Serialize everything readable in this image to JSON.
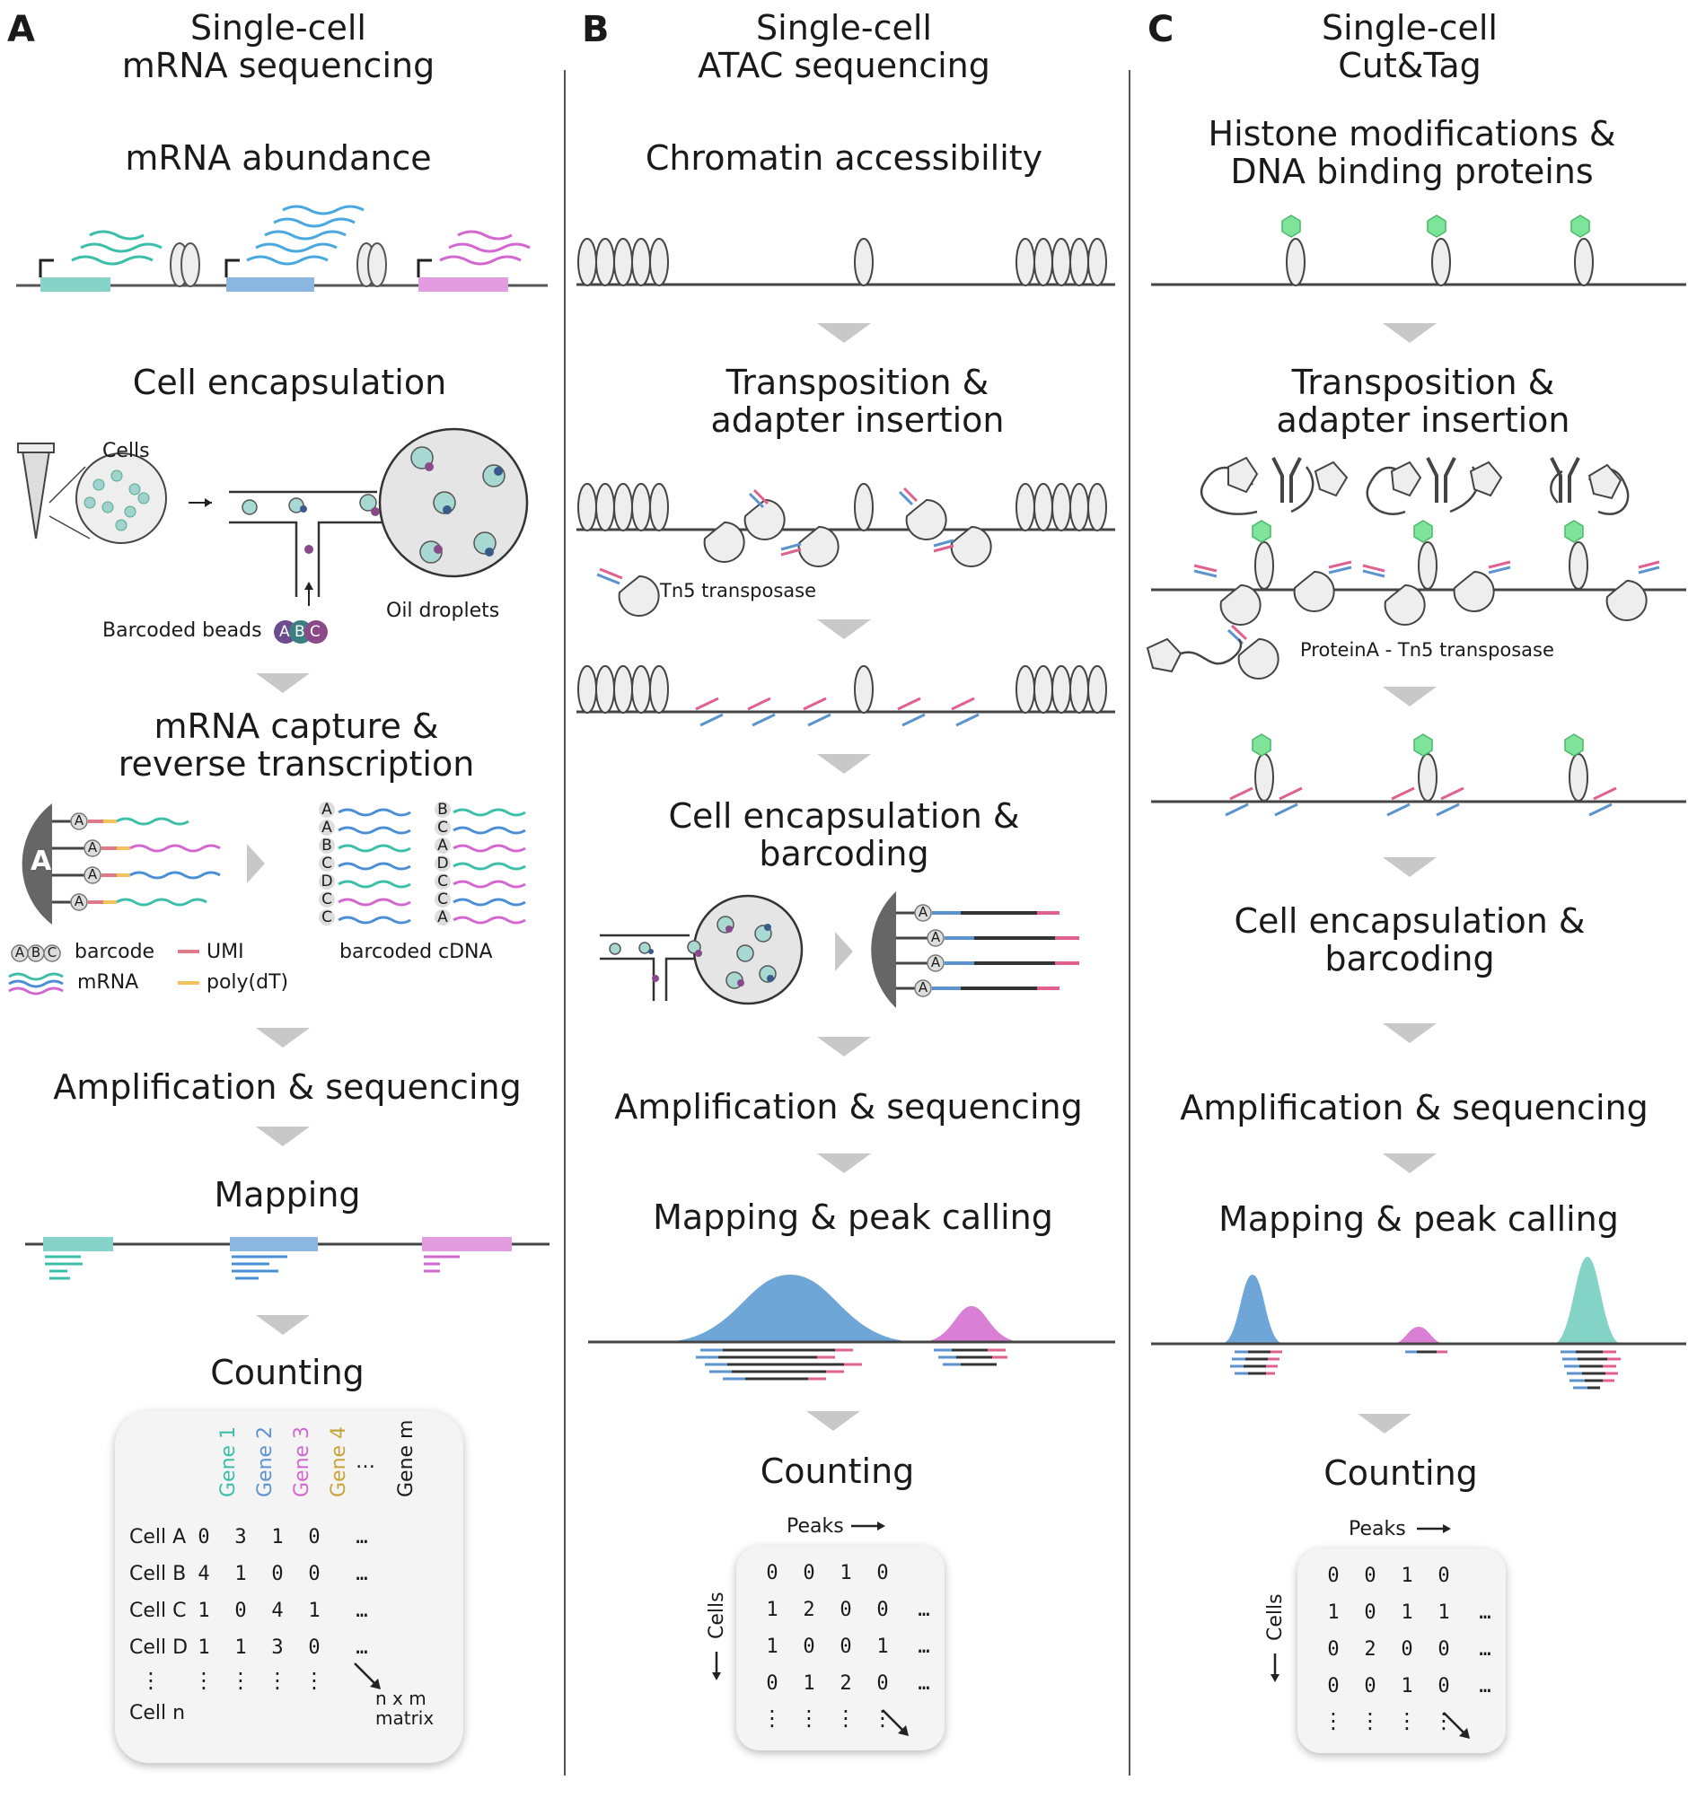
{
  "panels": [
    {
      "letter": "A",
      "title_line1": "Single-cell",
      "title_line2": "mRNA sequencing",
      "steps": {
        "s1": "mRNA abundance",
        "s2": "Cell encapsulation",
        "s3a": "mRNA capture &",
        "s3b": "reverse transcription",
        "s4": "Amplification & sequencing",
        "s5": "Mapping",
        "s6": "Counting"
      },
      "labels": {
        "cells": "Cells",
        "oil": "Oil droplets",
        "beads": "Barcoded beads",
        "bead_a": "A",
        "bead_b": "B",
        "bead_c": "C",
        "barcode": "barcode",
        "umi": "UMI",
        "mrna": "mRNA",
        "polydt": "poly(dT)",
        "cdna": "barcoded cDNA",
        "big_bead": "A"
      },
      "cdna_col1": [
        "A",
        "A",
        "B",
        "C",
        "D",
        "C",
        "C"
      ],
      "cdna_col2": [
        "B",
        "C",
        "A",
        "D",
        "C",
        "C",
        "A"
      ],
      "matrix": {
        "genes": [
          "Gene 1",
          "Gene 2",
          "Gene 3",
          "Gene 4",
          "Gene m"
        ],
        "gene_ellipsis": "…",
        "rows": [
          {
            "label": "Cell A",
            "values": [
              "0",
              "3",
              "1",
              "0",
              "…"
            ]
          },
          {
            "label": "Cell B",
            "values": [
              "4",
              "1",
              "0",
              "0",
              "…"
            ]
          },
          {
            "label": "Cell C",
            "values": [
              "1",
              "0",
              "4",
              "1",
              "…"
            ]
          },
          {
            "label": "Cell D",
            "values": [
              "1",
              "1",
              "3",
              "0",
              "…"
            ]
          }
        ],
        "vdots": "⋮",
        "last_row": "Cell n",
        "note_line1": "n x m",
        "note_line2": "matrix"
      }
    },
    {
      "letter": "B",
      "title_line1": "Single-cell",
      "title_line2": "ATAC sequencing",
      "steps": {
        "s1": "Chromatin accessibility",
        "s2a": "Transposition &",
        "s2b": "adapter insertion",
        "s3a": "Cell encapsulation &",
        "s3b": "barcoding",
        "s4": "Amplification & sequencing",
        "s5": "Mapping & peak calling",
        "s6": "Counting"
      },
      "labels": {
        "tn5": "Tn5 transposase",
        "bead": "A",
        "peaks": "Peaks",
        "cells": "Cells"
      },
      "matrix": {
        "rows": [
          [
            "0",
            "0",
            "1",
            "0",
            ""
          ],
          [
            "1",
            "2",
            "0",
            "0",
            "…"
          ],
          [
            "1",
            "0",
            "0",
            "1",
            "…"
          ],
          [
            "0",
            "1",
            "2",
            "0",
            "…"
          ]
        ],
        "vdots": "⋮"
      }
    },
    {
      "letter": "C",
      "title_line1": "Single-cell",
      "title_line2": "Cut&Tag",
      "steps": {
        "s1a": "Histone modifications &",
        "s1b": "DNA binding proteins",
        "s2a": "Transposition &",
        "s2b": "adapter insertion",
        "s3a": "Cell encapsulation &",
        "s3b": "barcoding",
        "s4": "Amplification & sequencing",
        "s5": "Mapping & peak calling",
        "s6": "Counting"
      },
      "labels": {
        "pat": "ProteinA - Tn5 transposase",
        "peaks": "Peaks",
        "cells": "Cells"
      },
      "matrix": {
        "rows": [
          [
            "0",
            "0",
            "1",
            "0",
            ""
          ],
          [
            "1",
            "0",
            "1",
            "1",
            "…"
          ],
          [
            "0",
            "2",
            "0",
            "0",
            "…"
          ],
          [
            "0",
            "0",
            "1",
            "0",
            "…"
          ]
        ],
        "vdots": "⋮"
      }
    }
  ],
  "colors": {
    "teal": "#3cbfa8",
    "blue": "#5b93cf",
    "pink": "#d267d0",
    "gold": "#c9a33a",
    "arrow": "#c8c8c8",
    "dark": "#444444"
  }
}
